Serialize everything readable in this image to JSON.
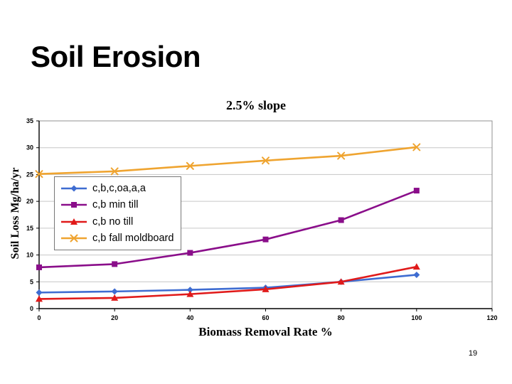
{
  "slide": {
    "title": "Soil Erosion",
    "page_number": "19"
  },
  "chart_data": {
    "type": "line",
    "title": "2.5% slope",
    "xlabel": "Biomass Removal Rate %",
    "ylabel": "Soil Loss Mg/ha/yr",
    "x": [
      0,
      20,
      40,
      60,
      80,
      100
    ],
    "xlim": [
      0,
      120
    ],
    "ylim": [
      0,
      35
    ],
    "x_ticks": [
      0,
      20,
      40,
      60,
      80,
      100,
      120
    ],
    "y_ticks": [
      0,
      5,
      10,
      15,
      20,
      25,
      30,
      35
    ],
    "grid": "horizontal",
    "legend_position": "upper-left-inside",
    "series": [
      {
        "name": "c,b,c,oa,a,a",
        "color": "#3E6CD1",
        "marker": "diamond",
        "values": [
          3.0,
          3.2,
          3.5,
          3.9,
          5.0,
          6.3
        ]
      },
      {
        "name": "c,b min till",
        "color": "#8A0E8A",
        "marker": "square",
        "values": [
          7.7,
          8.3,
          10.4,
          12.9,
          16.5,
          22.0
        ]
      },
      {
        "name": "c,b no till",
        "color": "#E01A1A",
        "marker": "triangle",
        "values": [
          1.8,
          2.0,
          2.7,
          3.6,
          5.0,
          7.8
        ]
      },
      {
        "name": "c,b fall moldboard",
        "color": "#EFA430",
        "marker": "x",
        "values": [
          25.1,
          25.6,
          26.6,
          27.6,
          28.5,
          30.1
        ]
      }
    ],
    "style": {
      "gridline_color": "#c6c6c6",
      "plot_border_color": "#909090",
      "axis_color": "#000000",
      "legend_border_color": "#777777"
    }
  }
}
